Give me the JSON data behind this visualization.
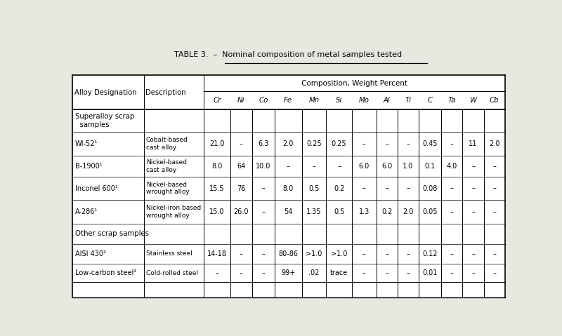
{
  "title": "TABLE 3.  –  Nominal composition of metal samples tested",
  "title_underline_text": "Nominal composition of metal samples tested",
  "composition_header": "Composition, Weight Percent",
  "col_headers": [
    "Alloy Designation",
    "Description",
    "Cr",
    "Ni",
    "Co",
    "Fe",
    "Mn",
    "Si",
    "Mo",
    "Al",
    "Ti",
    "C",
    "Ta",
    "W",
    "Cb"
  ],
  "rows": [
    [
      "WI-52¹",
      "Cobalt-based\ncast alloy",
      "21.0",
      "–",
      "6.3",
      "2.0",
      "0.25",
      "0.25",
      "–",
      "–",
      "–",
      "0.45",
      "–",
      "11",
      "2.0"
    ],
    [
      "B-1900¹",
      "Nickel-based\ncast alloy",
      "8.0",
      "64",
      "10.0",
      "–",
      "–",
      "–",
      "6.0",
      "6.0",
      "1.0",
      "0.1",
      "4.0",
      "–",
      "–"
    ],
    [
      "Inconel 600¹",
      "Nickel-based\nwrought alloy",
      "15.5",
      "76",
      "–",
      "8.0",
      "0.5",
      "0.2",
      "–",
      "–",
      "–",
      "0.08",
      "–",
      "–",
      "–"
    ],
    [
      "A-286¹",
      "Nickel-iron based\nwrought alloy",
      "15.0",
      "26.0",
      "–",
      "54",
      "1.35",
      "0.5",
      "1.3",
      "0.2",
      "2.0",
      "0.05",
      "–",
      "–",
      "–"
    ],
    [
      "AISI 430²",
      "Stainless steel",
      "14-18",
      "–",
      "–",
      "80-86",
      ">1.0",
      ">1.0",
      "–",
      "–",
      "–",
      "0.12",
      "–",
      "–",
      "–"
    ],
    [
      "Low-carbon steel²",
      "Cold-rolled steel",
      "–",
      "–",
      "–",
      "99+",
      ".02",
      "trace",
      "–",
      "–",
      "–",
      "0.01",
      "–",
      "–",
      "–"
    ]
  ],
  "section_labels": [
    "Superalloy scrap\n  samples",
    "Other scrap samples"
  ],
  "bg_color": "#e8e8e0",
  "table_bg": "#ffffff",
  "font_size": 7.0,
  "title_font_size": 8.0
}
